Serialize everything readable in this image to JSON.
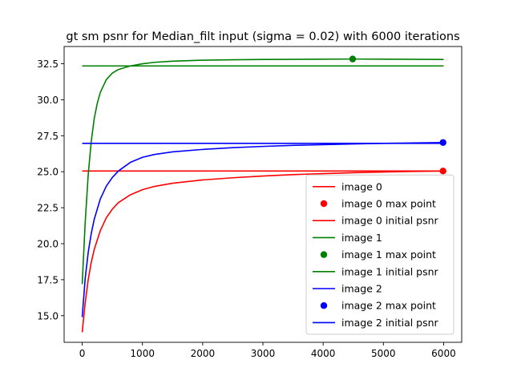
{
  "chart_data": {
    "type": "line",
    "title": "gt sm psnr for Median_filt input (sigma = 0.02) with 6000 iterations",
    "xlabel": "",
    "ylabel": "",
    "xlim": [
      -300,
      6300
    ],
    "ylim": [
      13.15,
      33.7
    ],
    "xticks": [
      0,
      1000,
      2000,
      3000,
      4000,
      5000,
      6000
    ],
    "xtick_labels": [
      "0",
      "1000",
      "2000",
      "3000",
      "4000",
      "5000",
      "6000"
    ],
    "yticks": [
      15.0,
      17.5,
      20.0,
      22.5,
      25.0,
      27.5,
      30.0,
      32.5
    ],
    "ytick_labels": [
      "15.0",
      "17.5",
      "20.0",
      "22.5",
      "25.0",
      "27.5",
      "30.0",
      "32.5"
    ],
    "grid": false,
    "legend_position": "lower right",
    "colors": {
      "image 0": "#ff0000",
      "image 1": "#008000",
      "image 2": "#0000ff"
    },
    "series": [
      {
        "name": "image 0",
        "color": "#ff0000",
        "marker": "line",
        "x": [
          0,
          50,
          100,
          150,
          200,
          300,
          400,
          500,
          600,
          800,
          1000,
          1200,
          1500,
          2000,
          2500,
          3000,
          3500,
          4000,
          4500,
          5000,
          5500,
          6000
        ],
        "y": [
          13.85,
          15.9,
          17.5,
          18.7,
          19.6,
          20.9,
          21.8,
          22.4,
          22.85,
          23.4,
          23.75,
          23.98,
          24.2,
          24.43,
          24.58,
          24.7,
          24.8,
          24.87,
          24.93,
          24.98,
          25.02,
          25.05
        ]
      },
      {
        "name": "image 0 max point",
        "color": "#ff0000",
        "marker": "point",
        "x": [
          5990
        ],
        "y": [
          25.05
        ]
      },
      {
        "name": "image 0 initial psnr",
        "color": "#ff0000",
        "marker": "line",
        "x": [
          0,
          6000
        ],
        "y": [
          25.05,
          25.05
        ]
      },
      {
        "name": "image 1",
        "color": "#008000",
        "marker": "line",
        "x": [
          0,
          50,
          100,
          150,
          200,
          250,
          300,
          400,
          500,
          600,
          800,
          1000,
          1200,
          1500,
          2000,
          2500,
          3000,
          4000,
          4500,
          5000,
          6000
        ],
        "y": [
          17.2,
          21.5,
          24.8,
          27.1,
          28.7,
          29.75,
          30.5,
          31.4,
          31.85,
          32.1,
          32.35,
          32.5,
          32.6,
          32.68,
          32.75,
          32.78,
          32.8,
          32.82,
          32.83,
          32.82,
          32.8
        ]
      },
      {
        "name": "image 1 max point",
        "color": "#008000",
        "marker": "point",
        "x": [
          4490
        ],
        "y": [
          32.83
        ]
      },
      {
        "name": "image 1 initial psnr",
        "color": "#008000",
        "marker": "line",
        "x": [
          0,
          6000
        ],
        "y": [
          32.35,
          32.35
        ]
      },
      {
        "name": "image 2",
        "color": "#0000ff",
        "marker": "line",
        "x": [
          0,
          50,
          100,
          150,
          200,
          300,
          400,
          500,
          600,
          800,
          1000,
          1200,
          1500,
          2000,
          2500,
          3000,
          3500,
          4000,
          4500,
          5000,
          5500,
          6000
        ],
        "y": [
          14.9,
          17.6,
          19.4,
          20.7,
          21.7,
          23.1,
          24.0,
          24.6,
          25.05,
          25.65,
          26.0,
          26.2,
          26.38,
          26.55,
          26.67,
          26.76,
          26.83,
          26.88,
          26.93,
          26.97,
          27.0,
          27.03
        ]
      },
      {
        "name": "image 2 max point",
        "color": "#0000ff",
        "marker": "point",
        "x": [
          5990
        ],
        "y": [
          27.03
        ]
      },
      {
        "name": "image 2 initial psnr",
        "color": "#0000ff",
        "marker": "line",
        "x": [
          0,
          6000
        ],
        "y": [
          26.97,
          26.97
        ]
      }
    ]
  }
}
